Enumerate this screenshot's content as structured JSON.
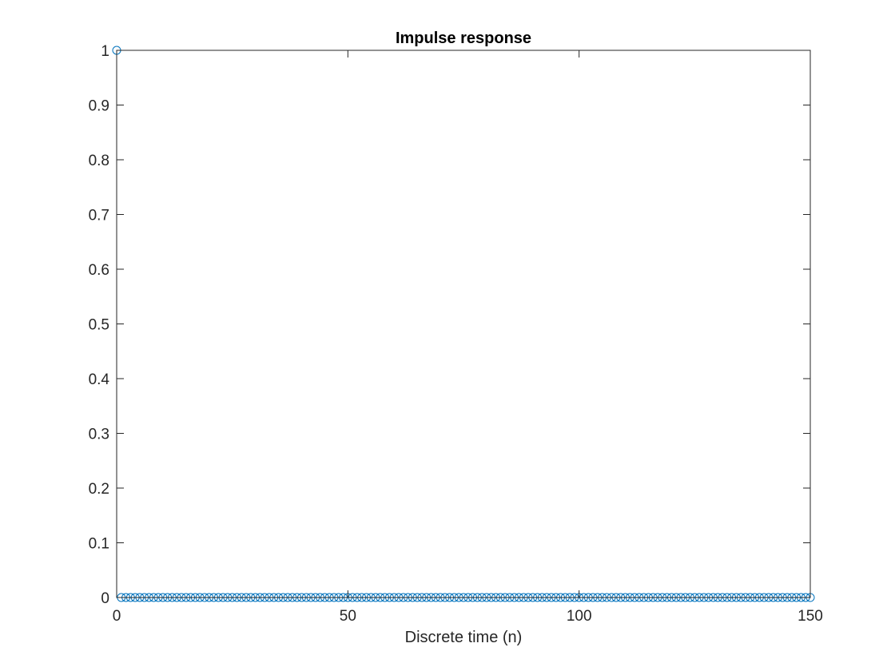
{
  "chart_data": {
    "type": "stem",
    "title": "Impulse response",
    "xlabel": "Discrete time (n)",
    "ylabel": "",
    "xlim": [
      0,
      150
    ],
    "ylim": [
      0,
      1
    ],
    "x_ticks": [
      0,
      50,
      100,
      150
    ],
    "y_ticks": [
      0,
      0.1,
      0.2,
      0.3,
      0.4,
      0.5,
      0.6,
      0.7,
      0.8,
      0.9,
      1
    ],
    "x_tick_labels": [
      "0",
      "50",
      "100",
      "150"
    ],
    "y_tick_labels": [
      "0",
      "0.1",
      "0.2",
      "0.3",
      "0.4",
      "0.5",
      "0.6",
      "0.7",
      "0.8",
      "0.9",
      "1"
    ],
    "grid": false,
    "box": true,
    "series": [
      {
        "marker": "open-circle",
        "color": "#0072BD",
        "x_start": 0,
        "x_end": 150,
        "x_step": 1,
        "nonzero": [
          {
            "x": 0,
            "y": 1
          }
        ],
        "default_y": 0
      }
    ]
  }
}
